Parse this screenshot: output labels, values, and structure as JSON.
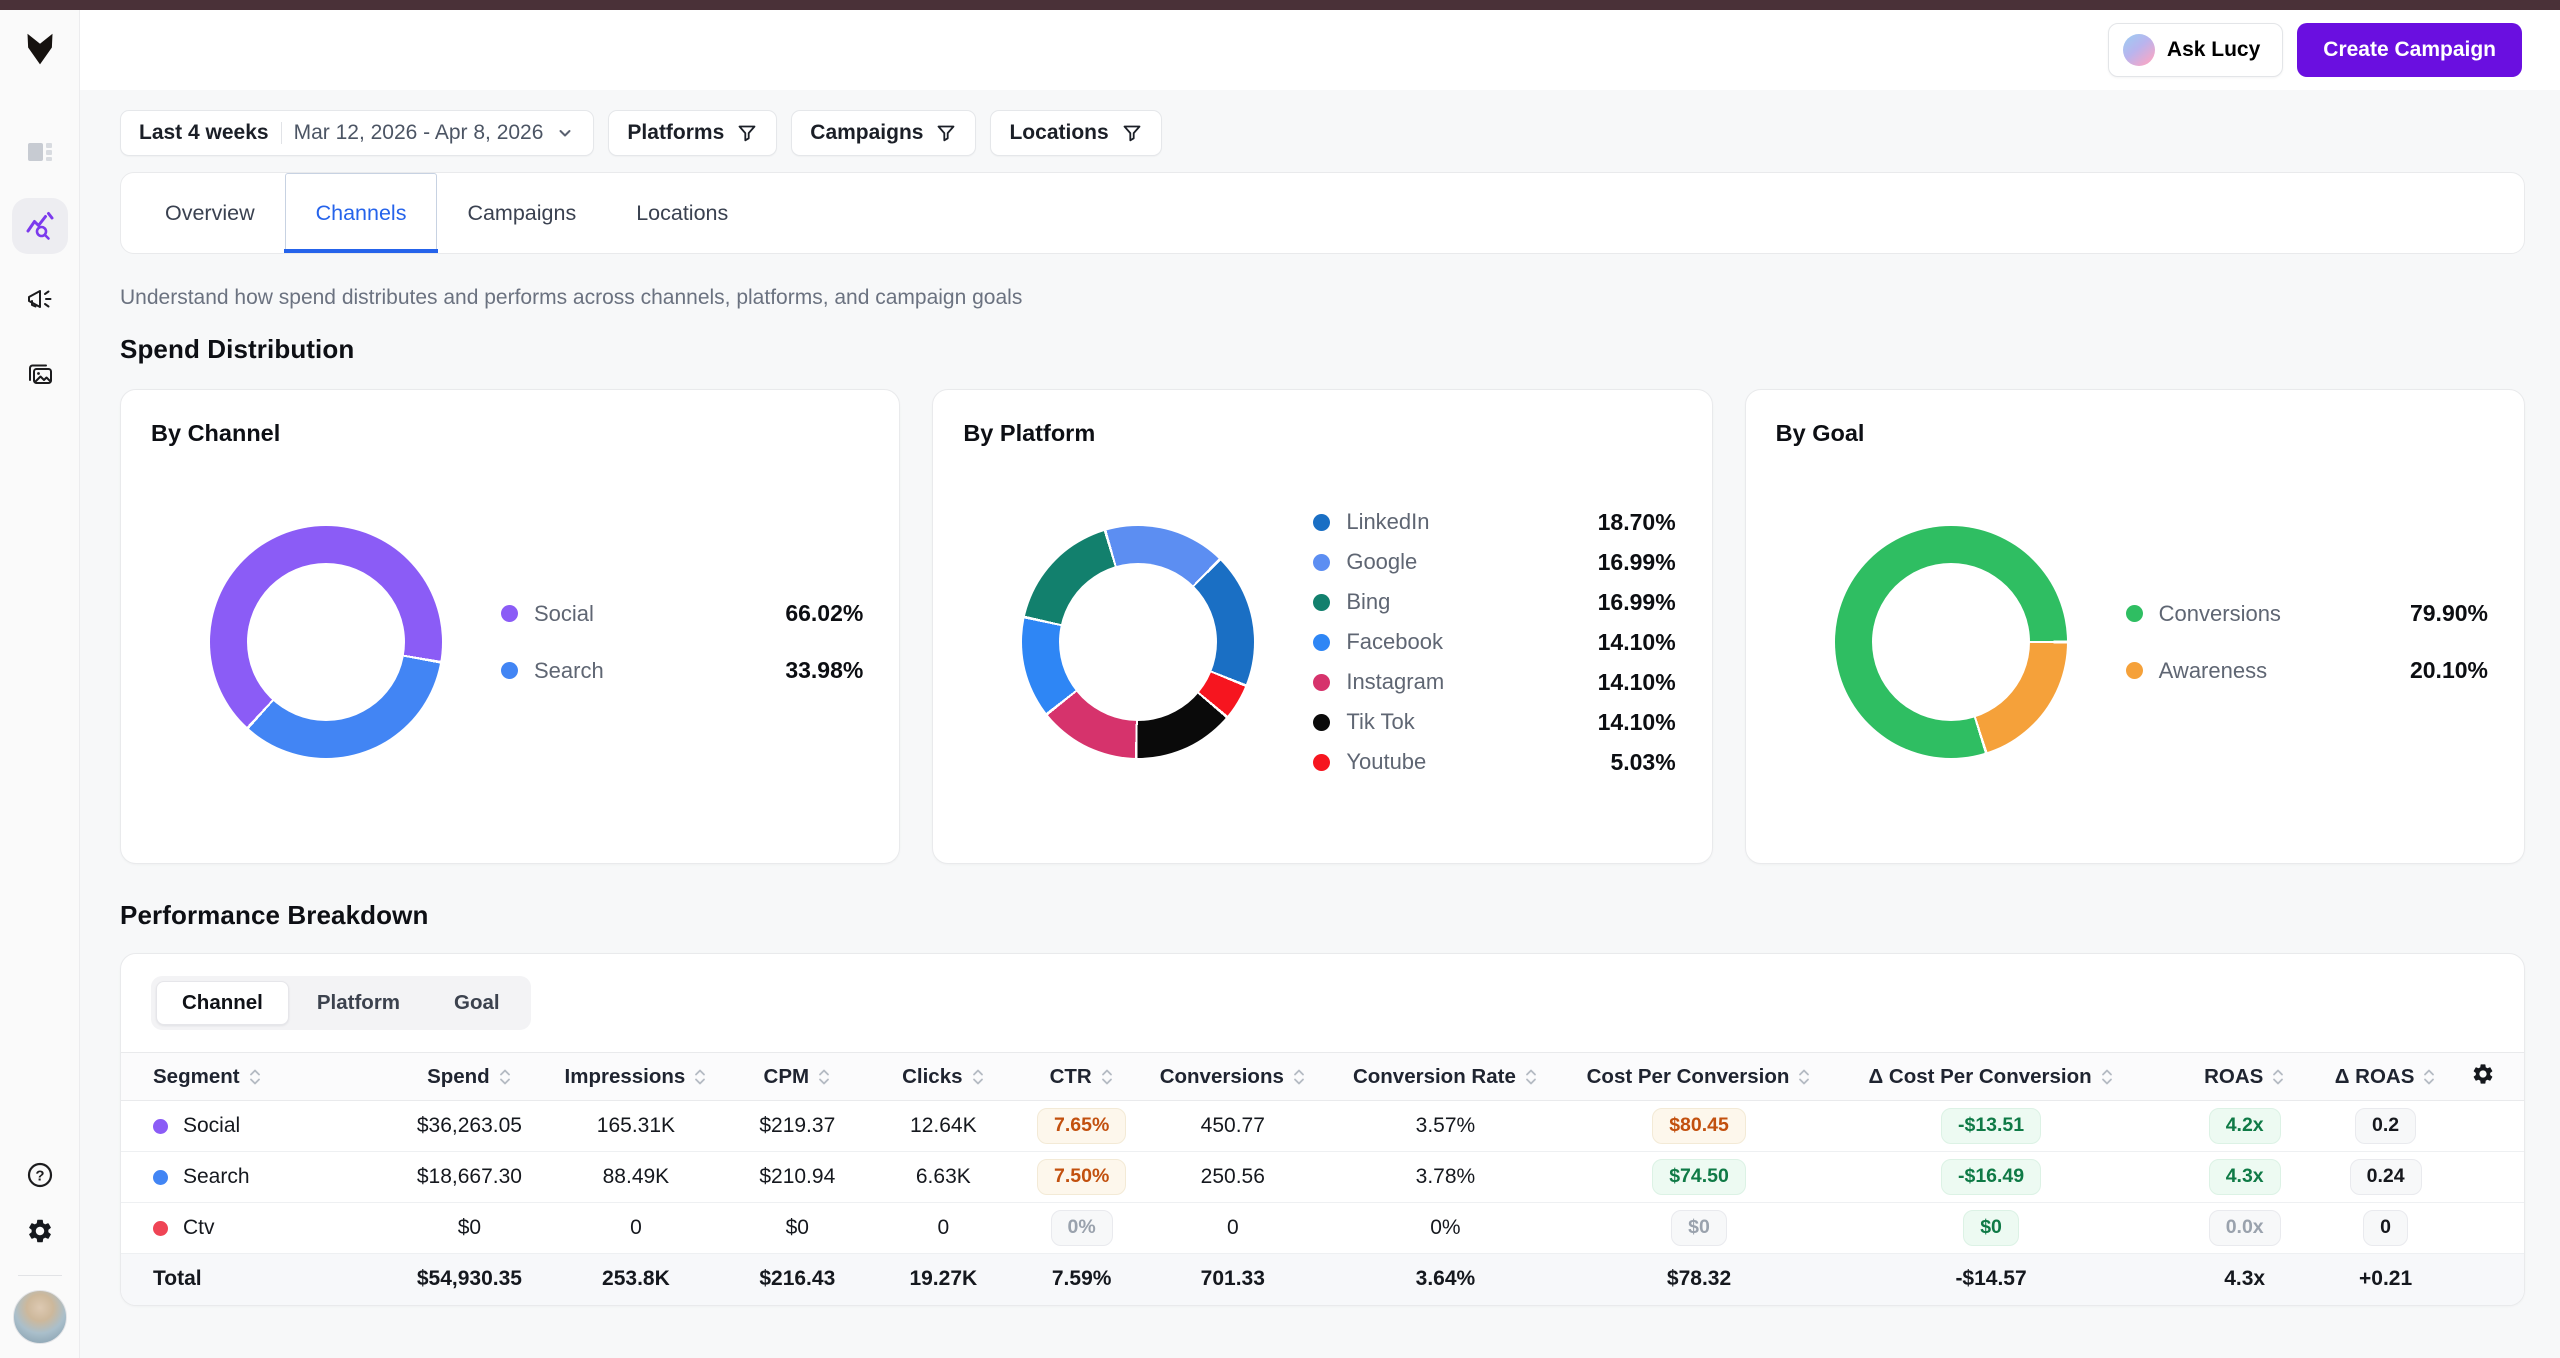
{
  "topbar": {
    "ask_lucy_label": "Ask Lucy",
    "create_campaign_label": "Create Campaign"
  },
  "filters": {
    "preset": "Last 4 weeks",
    "date_range": "Mar 12, 2026 - Apr 8, 2026",
    "filter_buttons": [
      "Platforms",
      "Campaigns",
      "Locations"
    ]
  },
  "tabs": {
    "items": [
      "Overview",
      "Channels",
      "Campaigns",
      "Locations"
    ],
    "active": "Channels",
    "active_color": "#2563eb"
  },
  "page": {
    "description": "Understand how spend distributes and performs across channels, platforms, and campaign goals",
    "section_spend": "Spend Distribution",
    "section_performance": "Performance Breakdown"
  },
  "chart_data": [
    {
      "type": "donut",
      "title": "By Channel",
      "legend_position": "right",
      "start_angle_deg": 100,
      "slices": [
        {
          "label": "Social",
          "value": 66.02,
          "color": "#8b5cf6"
        },
        {
          "label": "Search",
          "value": 33.98,
          "color": "#4285f4"
        }
      ]
    },
    {
      "type": "donut",
      "title": "By Platform",
      "legend_position": "right",
      "start_angle_deg": 112,
      "slices": [
        {
          "label": "LinkedIn",
          "value": 18.7,
          "color": "#1a6fc4"
        },
        {
          "label": "Google",
          "value": 16.99,
          "color": "#5c8ef2"
        },
        {
          "label": "Bing",
          "value": 16.99,
          "color": "#12806d"
        },
        {
          "label": "Facebook",
          "value": 14.1,
          "color": "#2e86f5"
        },
        {
          "label": "Instagram",
          "value": 14.1,
          "color": "#d6336c"
        },
        {
          "label": "Tik Tok",
          "value": 14.1,
          "color": "#0a0a0a"
        },
        {
          "label": "Youtube",
          "value": 5.03,
          "color": "#f6151f"
        }
      ]
    },
    {
      "type": "donut",
      "title": "By Goal",
      "legend_position": "right",
      "start_angle_deg": 90,
      "slices": [
        {
          "label": "Conversions",
          "value": 79.9,
          "color": "#2fbe62"
        },
        {
          "label": "Awareness",
          "value": 20.1,
          "color": "#f5a13a"
        }
      ]
    }
  ],
  "table": {
    "view_options": [
      "Channel",
      "Platform",
      "Goal"
    ],
    "active_view": "Channel",
    "columns": [
      {
        "key": "segment",
        "label": "Segment",
        "sortable": true
      },
      {
        "key": "spend",
        "label": "Spend",
        "sortable": true
      },
      {
        "key": "impressions",
        "label": "Impressions",
        "sortable": true
      },
      {
        "key": "cpm",
        "label": "CPM",
        "sortable": true
      },
      {
        "key": "clicks",
        "label": "Clicks",
        "sortable": true
      },
      {
        "key": "ctr",
        "label": "CTR",
        "sortable": true
      },
      {
        "key": "conversions",
        "label": "Conversions",
        "sortable": true
      },
      {
        "key": "conversion_rate",
        "label": "Conversion Rate",
        "sortable": true
      },
      {
        "key": "cost_per_conversion",
        "label": "Cost Per Conversion",
        "sortable": true
      },
      {
        "key": "delta_cost_per_conversion",
        "label": "Δ Cost Per Conversion",
        "sortable": true
      },
      {
        "key": "roas",
        "label": "ROAS",
        "sortable": true
      },
      {
        "key": "delta_roas",
        "label": "Δ ROAS",
        "sortable": true
      }
    ],
    "rows": [
      {
        "segment": "Social",
        "dot_color": "#8b5cf6",
        "spend": "$36,263.05",
        "impressions": "165.31K",
        "cpm": "$219.37",
        "clicks": "12.64K",
        "ctr": {
          "text": "7.65%",
          "badge": "amber"
        },
        "conversions": "450.77",
        "conversion_rate": "3.57%",
        "cost_per_conversion": {
          "text": "$80.45",
          "badge": "amber"
        },
        "delta_cost_per_conversion": {
          "text": "-$13.51",
          "badge": "green"
        },
        "roas": {
          "text": "4.2x",
          "badge": "green"
        },
        "delta_roas": {
          "text": "0.2",
          "badge": "neutral"
        }
      },
      {
        "segment": "Search",
        "dot_color": "#4285f4",
        "spend": "$18,667.30",
        "impressions": "88.49K",
        "cpm": "$210.94",
        "clicks": "6.63K",
        "ctr": {
          "text": "7.50%",
          "badge": "amber"
        },
        "conversions": "250.56",
        "conversion_rate": "3.78%",
        "cost_per_conversion": {
          "text": "$74.50",
          "badge": "green"
        },
        "delta_cost_per_conversion": {
          "text": "-$16.49",
          "badge": "green"
        },
        "roas": {
          "text": "4.3x",
          "badge": "green"
        },
        "delta_roas": {
          "text": "0.24",
          "badge": "neutral"
        }
      },
      {
        "segment": "Ctv",
        "dot_color": "#ef4455",
        "spend": "$0",
        "impressions": "0",
        "cpm": "$0",
        "clicks": "0",
        "ctr": {
          "text": "0%",
          "badge": "muted"
        },
        "conversions": "0",
        "conversion_rate": "0%",
        "cost_per_conversion": {
          "text": "$0",
          "badge": "muted"
        },
        "delta_cost_per_conversion": {
          "text": "$0",
          "badge": "green"
        },
        "roas": {
          "text": "0.0x",
          "badge": "muted"
        },
        "delta_roas": {
          "text": "0",
          "badge": "neutral"
        }
      }
    ],
    "total": {
      "segment": "Total",
      "spend": "$54,930.35",
      "impressions": "253.8K",
      "cpm": "$216.43",
      "clicks": "19.27K",
      "ctr": "7.59%",
      "conversions": "701.33",
      "conversion_rate": "3.64%",
      "cost_per_conversion": "$78.32",
      "delta_cost_per_conversion": "-$14.57",
      "roas": "4.3x",
      "delta_roas": "+0.21"
    }
  },
  "colors": {
    "accent_purple": "#6a0fe0",
    "topstrip": "#4a3138",
    "tab_active": "#2563eb"
  }
}
